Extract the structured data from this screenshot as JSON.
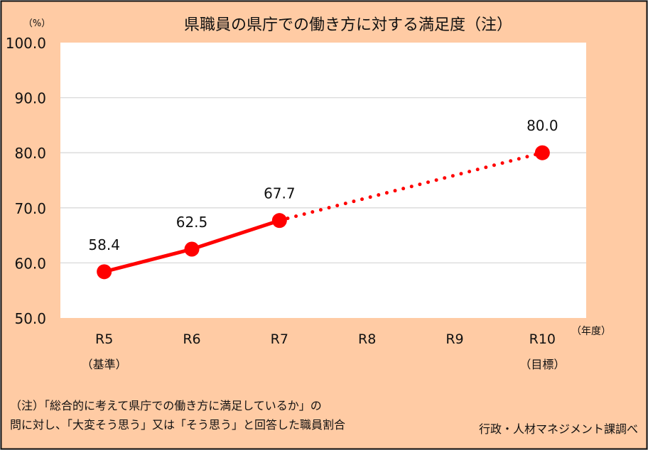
{
  "chart_data": {
    "type": "line",
    "title": "県職員の県庁での働き方に対する満足度（注）",
    "ylabel": "（%）",
    "xlabel": "（年度）",
    "categories": [
      "R5",
      "R6",
      "R7",
      "R8",
      "R9",
      "R10"
    ],
    "category_sublabels": [
      "（基準）",
      "",
      "",
      "",
      "",
      "（目標）"
    ],
    "ylim": [
      50,
      100
    ],
    "yticks": [
      "50.0",
      "60.0",
      "70.0",
      "80.0",
      "90.0",
      "100.0"
    ],
    "grid": true,
    "series": [
      {
        "style": "solid",
        "points": [
          {
            "x": "R5",
            "y": 58.4,
            "label": "58.4"
          },
          {
            "x": "R6",
            "y": 62.5,
            "label": "62.5"
          },
          {
            "x": "R7",
            "y": 67.7,
            "label": "67.7"
          }
        ]
      },
      {
        "style": "dotted",
        "points": [
          {
            "x": "R7",
            "y": 67.7
          },
          {
            "x": "R10",
            "y": 80.0,
            "label": "80.0"
          }
        ]
      }
    ],
    "colors": {
      "line": "#ff0000",
      "background": "#ffcba4",
      "plot": "#ffffff",
      "grid": "#d9d9d9"
    }
  },
  "notes": {
    "line1": "（注）「総合的に考えて県庁での働き方に満足しているか」の",
    "line2": "問に対し、「大変そう思う」又は「そう思う」と回答した職員割合",
    "source": "行政・人材マネジメント課調べ"
  }
}
